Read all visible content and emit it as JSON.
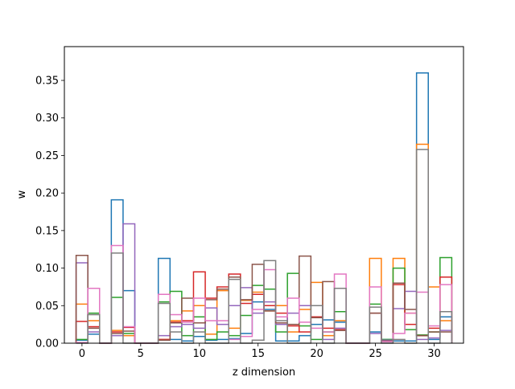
{
  "chart_data": {
    "type": "step",
    "title": "",
    "xlabel": "z dimension",
    "ylabel": "w",
    "xlim": [
      -1.5,
      32.5
    ],
    "ylim": [
      0,
      0.395
    ],
    "x_ticks": [
      0,
      5,
      10,
      15,
      20,
      25,
      30
    ],
    "y_ticks": [
      0.0,
      0.05,
      0.1,
      0.15,
      0.2,
      0.25,
      0.3,
      0.35
    ],
    "x_tick_labels": [
      "0",
      "5",
      "10",
      "15",
      "20",
      "25",
      "30"
    ],
    "y_tick_labels": [
      "0.00",
      "0.05",
      "0.10",
      "0.15",
      "0.20",
      "0.25",
      "0.30",
      "0.35"
    ],
    "grid": false,
    "legend": "none",
    "x": [
      0,
      1,
      2,
      3,
      4,
      5,
      6,
      7,
      8,
      9,
      10,
      11,
      12,
      13,
      14,
      15,
      16,
      17,
      18,
      19,
      20,
      21,
      22,
      23,
      24,
      25,
      26,
      27,
      28,
      29,
      30,
      31
    ],
    "series": [
      {
        "color": "#1f77b4",
        "values": [
          0.004,
          0.012,
          0,
          0.191,
          0.07,
          0,
          0,
          0.113,
          0.005,
          0.003,
          0.009,
          0.004,
          0.005,
          0.006,
          0.013,
          0.055,
          0.045,
          0.003,
          0.003,
          0.01,
          0.025,
          0.031,
          0.028,
          0,
          0,
          0.015,
          0.005,
          0.003,
          0.003,
          0.36,
          0.005,
          0.035
        ]
      },
      {
        "color": "#ff7f0e",
        "values": [
          0.052,
          0.03,
          0,
          0.017,
          0.01,
          0,
          0,
          0.005,
          0.03,
          0.043,
          0.05,
          0.012,
          0.07,
          0.02,
          0.057,
          0.068,
          0.043,
          0.05,
          0.015,
          0.045,
          0.081,
          0.01,
          0.03,
          0,
          0,
          0.113,
          0.004,
          0.113,
          0.04,
          0.265,
          0.075,
          0.03
        ]
      },
      {
        "color": "#2ca02c",
        "values": [
          0.005,
          0.04,
          0,
          0.061,
          0.013,
          0,
          0,
          0.055,
          0.069,
          0.01,
          0.035,
          0.005,
          0.015,
          0.01,
          0.037,
          0.077,
          0.072,
          0.015,
          0.093,
          0.023,
          0.005,
          0.015,
          0.042,
          0,
          0,
          0.052,
          0.005,
          0.1,
          0.018,
          0.011,
          0.015,
          0.114
        ]
      },
      {
        "color": "#d62728",
        "values": [
          0.029,
          0.022,
          0,
          0.015,
          0.021,
          0,
          0,
          0.005,
          0.028,
          0.03,
          0.095,
          0.06,
          0.075,
          0.092,
          0.053,
          0.065,
          0.05,
          0.04,
          0.023,
          0.015,
          0.035,
          0.02,
          0.018,
          0,
          0,
          0.04,
          0.003,
          0.078,
          0.025,
          0.01,
          0.02,
          0.088
        ]
      },
      {
        "color": "#9467bd",
        "values": [
          0.107,
          0.015,
          0,
          0.01,
          0.159,
          0,
          0,
          0.01,
          0.022,
          0.025,
          0.02,
          0.047,
          0.025,
          0.05,
          0.074,
          0.04,
          0.055,
          0.025,
          0.04,
          0.05,
          0.05,
          0.005,
          0.02,
          0,
          0,
          0.013,
          0.004,
          0.046,
          0.069,
          0.005,
          0.007,
          0.017
        ]
      },
      {
        "color": "#8c564b",
        "values": [
          0.117,
          0.02,
          0,
          0.013,
          0.016,
          0,
          0,
          0.004,
          0.027,
          0.06,
          0.027,
          0.058,
          0.072,
          0.088,
          0.058,
          0.105,
          0.043,
          0.027,
          0.025,
          0.116,
          0.034,
          0.082,
          0.017,
          0,
          0,
          0.04,
          0.003,
          0.08,
          0.045,
          0.01,
          0.015,
          0.015
        ]
      },
      {
        "color": "#e377c2",
        "values": [
          0.001,
          0.073,
          0,
          0.13,
          0.022,
          0,
          0,
          0.065,
          0.038,
          0.028,
          0.06,
          0.03,
          0.03,
          0.005,
          0.009,
          0.045,
          0.098,
          0.035,
          0.06,
          0.028,
          0.02,
          0.015,
          0.092,
          0,
          0,
          0.075,
          0.002,
          0.013,
          0.04,
          0.068,
          0.023,
          0.078
        ]
      },
      {
        "color": "#7f7f7f",
        "values": [
          0.0,
          0.038,
          0,
          0.12,
          0.0,
          0,
          0,
          0.053,
          0.015,
          0.0,
          0.015,
          0.0,
          0.0,
          0.085,
          0.0,
          0.004,
          0.11,
          0.03,
          0.0,
          0.0,
          0.05,
          0.0,
          0.073,
          0,
          0,
          0.048,
          0.0,
          0.005,
          0.0,
          0.258,
          0.0,
          0.042
        ]
      }
    ]
  }
}
